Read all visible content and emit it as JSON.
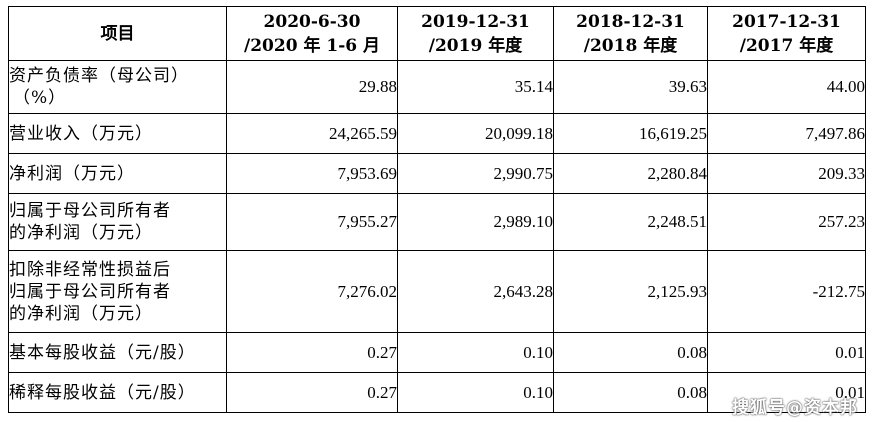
{
  "table": {
    "header": {
      "item": "项目",
      "columns": [
        {
          "line1": "2020-6-30",
          "line2": "/2020 年 1-6 月"
        },
        {
          "line1": "2019-12-31",
          "line2": "/2019 年度"
        },
        {
          "line1": "2018-12-31",
          "line2": "/2018 年度"
        },
        {
          "line1": "2017-12-31",
          "line2": "/2017 年度"
        }
      ]
    },
    "rows": [
      {
        "label_lines": [
          "资产负债率（母公司）",
          "（%）"
        ],
        "values": [
          "29.88",
          "35.14",
          "39.63",
          "44.00"
        ]
      },
      {
        "label_lines": [
          "营业收入（万元）"
        ],
        "values": [
          "24,265.59",
          "20,099.18",
          "16,619.25",
          "7,497.86"
        ]
      },
      {
        "label_lines": [
          "净利润（万元）"
        ],
        "values": [
          "7,953.69",
          "2,990.75",
          "2,280.84",
          "209.33"
        ]
      },
      {
        "label_lines": [
          "归属于母公司所有者",
          "的净利润（万元）"
        ],
        "values": [
          "7,955.27",
          "2,989.10",
          "2,248.51",
          "257.23"
        ]
      },
      {
        "label_lines": [
          "扣除非经常性损益后",
          "归属于母公司所有者",
          "的净利润（万元）"
        ],
        "values": [
          "7,276.02",
          "2,643.28",
          "2,125.93",
          "-212.75"
        ]
      },
      {
        "label_lines": [
          "基本每股收益（元/股）"
        ],
        "values": [
          "0.27",
          "0.10",
          "0.08",
          "0.01"
        ]
      },
      {
        "label_lines": [
          "稀释每股收益（元/股）"
        ],
        "values": [
          "0.27",
          "0.10",
          "0.08",
          "0.01"
        ]
      }
    ]
  },
  "watermark": "搜狐号@资本邦"
}
